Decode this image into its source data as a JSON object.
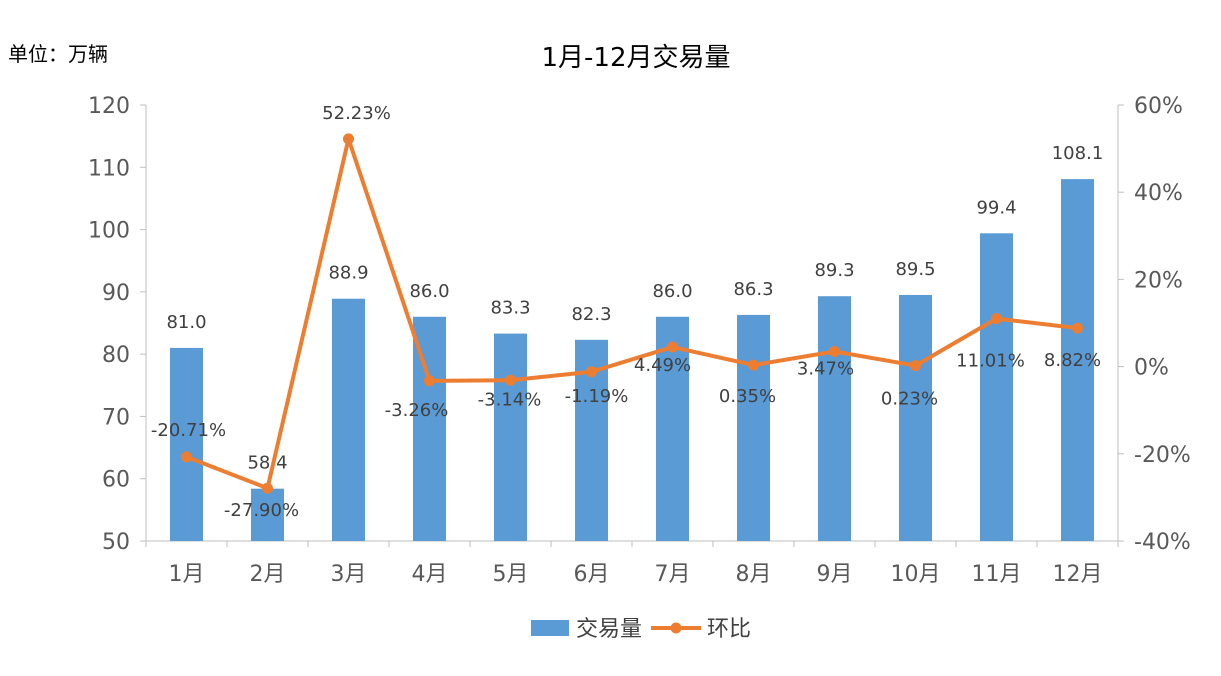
{
  "unit_label": "单位：万辆",
  "chart_data": {
    "type": "bar+line",
    "title": "1月-12月交易量",
    "categories": [
      "1月",
      "2月",
      "3月",
      "4月",
      "5月",
      "6月",
      "7月",
      "8月",
      "9月",
      "10月",
      "11月",
      "12月"
    ],
    "series": [
      {
        "name": "交易量",
        "type": "bar",
        "axis": "left",
        "color": "#5B9BD5",
        "values": [
          81.0,
          58.4,
          88.9,
          86.0,
          83.3,
          82.3,
          86.0,
          86.3,
          89.3,
          89.5,
          99.4,
          108.1
        ],
        "labels": [
          "81.0",
          "58.4",
          "88.9",
          "86.0",
          "83.3",
          "82.3",
          "86.0",
          "86.3",
          "89.3",
          "89.5",
          "99.4",
          "108.1"
        ]
      },
      {
        "name": "环比",
        "type": "line",
        "axis": "right",
        "color": "#ED7D31",
        "values": [
          -20.71,
          -27.9,
          52.23,
          -3.26,
          -3.14,
          -1.19,
          4.49,
          0.35,
          3.47,
          0.23,
          11.01,
          8.82
        ],
        "labels": [
          "-20.71%",
          "-27.90%",
          "52.23%",
          "-3.26%",
          "-3.14%",
          "-1.19%",
          "4.49%",
          "0.35%",
          "3.47%",
          "0.23%",
          "11.01%",
          "8.82%"
        ]
      }
    ],
    "y_left": {
      "min": 50,
      "max": 120,
      "ticks": [
        "50",
        "60",
        "70",
        "80",
        "90",
        "100",
        "110",
        "120"
      ]
    },
    "y_right": {
      "min": -40,
      "max": 60,
      "ticks": [
        "-40%",
        "-20%",
        "0%",
        "20%",
        "40%",
        "60%"
      ]
    },
    "grid": false,
    "legend": "bottom"
  }
}
